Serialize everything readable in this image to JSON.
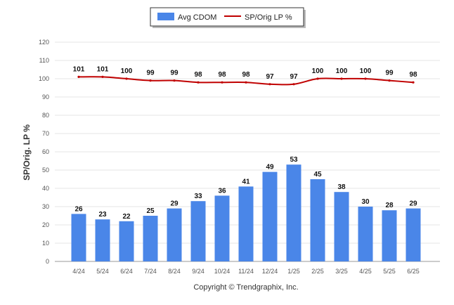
{
  "chart_data": {
    "type": "bar",
    "categories": [
      "4/24",
      "5/24",
      "6/24",
      "7/24",
      "8/24",
      "9/24",
      "10/24",
      "11/24",
      "12/24",
      "1/25",
      "2/25",
      "3/25",
      "4/25",
      "5/25",
      "6/25"
    ],
    "series": [
      {
        "name": "Avg CDOM",
        "type": "bar",
        "color": "#4a86e8",
        "values": [
          26,
          23,
          22,
          25,
          29,
          33,
          36,
          41,
          49,
          53,
          45,
          38,
          30,
          28,
          29
        ]
      },
      {
        "name": "SP/Orig LP %",
        "type": "line",
        "color": "#c00000",
        "values": [
          101,
          101,
          100,
          99,
          99,
          98,
          98,
          98,
          97,
          97,
          100,
          100,
          100,
          99,
          98
        ]
      }
    ],
    "title": "",
    "xlabel": "",
    "ylabel": "SP/Orig. LP %",
    "ylim": [
      0,
      120
    ],
    "yticks": [
      0,
      10,
      20,
      30,
      40,
      50,
      60,
      70,
      80,
      90,
      100,
      110,
      120
    ],
    "grid": true,
    "legend": "top-center"
  },
  "footer": {
    "copyright": "Copyright © Trendgraphix, Inc."
  }
}
